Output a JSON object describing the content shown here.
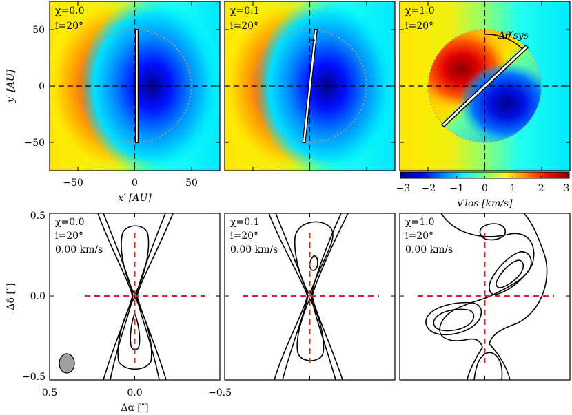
{
  "chart_data": [
    {
      "type": "heatmap",
      "panel": "top-left",
      "annotations": [
        "χ=0.0",
        "i=20°"
      ],
      "xlabel": "x′ [AU]",
      "ylabel": "y′ [AU]",
      "xlim": [
        -75,
        75
      ],
      "ylim": [
        -75,
        75
      ],
      "xticks": [
        "−50",
        "0",
        "50"
      ],
      "yticks": [
        "50",
        "0",
        "−50"
      ],
      "outer_radius_au": 50,
      "axis_angle_deg": 0
    },
    {
      "type": "heatmap",
      "panel": "top-middle",
      "annotations": [
        "χ=0.1",
        "i=20°"
      ],
      "xlim": [
        -75,
        75
      ],
      "ylim": [
        -75,
        75
      ],
      "outer_radius_au": 50,
      "axis_angle_deg": 8
    },
    {
      "type": "heatmap",
      "panel": "top-right",
      "annotations": [
        "χ=1.0",
        "i=20°"
      ],
      "angle_label": "Δθ′sys",
      "xlim": [
        -75,
        75
      ],
      "ylim": [
        -75,
        75
      ],
      "outer_radius_au": 50,
      "axis_angle_deg": 50,
      "colorbar": {
        "label": "v′los [km/s]",
        "range": [
          -3,
          3
        ],
        "ticks": [
          "−3",
          "−2",
          "−1",
          "0",
          "1",
          "2",
          "3"
        ],
        "colormap": [
          "#00007f",
          "#0000ff",
          "#007fff",
          "#00ffff",
          "#7fff7f",
          "#ffff00",
          "#ff7f00",
          "#ff0000",
          "#7f0000"
        ]
      }
    },
    {
      "type": "line",
      "panel": "bottom-left",
      "annotations": [
        "χ=0.0",
        "i=20°",
        "0.00 km/s"
      ],
      "xlabel": "Δα [″]",
      "ylabel": "Δδ [″]",
      "xlim": [
        0.5,
        -0.5
      ],
      "ylim": [
        -0.5,
        0.5
      ],
      "xticks": [
        "0.5",
        "0.0",
        "−0.5"
      ],
      "yticks": [
        "0.5",
        "0.0",
        "−0.5"
      ],
      "beam": true
    },
    {
      "type": "line",
      "panel": "bottom-middle",
      "annotations": [
        "χ=0.1",
        "i=20°",
        "0.00 km/s"
      ],
      "xlim": [
        0.5,
        -0.5
      ],
      "ylim": [
        -0.5,
        0.5
      ]
    },
    {
      "type": "line",
      "panel": "bottom-right",
      "annotations": [
        "χ=1.0",
        "i=20°",
        "0.00 km/s"
      ],
      "xlim": [
        0.5,
        -0.5
      ],
      "ylim": [
        -0.5,
        0.5
      ]
    }
  ],
  "colors": {
    "crosshair_black": "#000000",
    "crosshair_red": "#e0221c",
    "circle": "#9a9a9a",
    "beam": "#a0a0a0"
  }
}
